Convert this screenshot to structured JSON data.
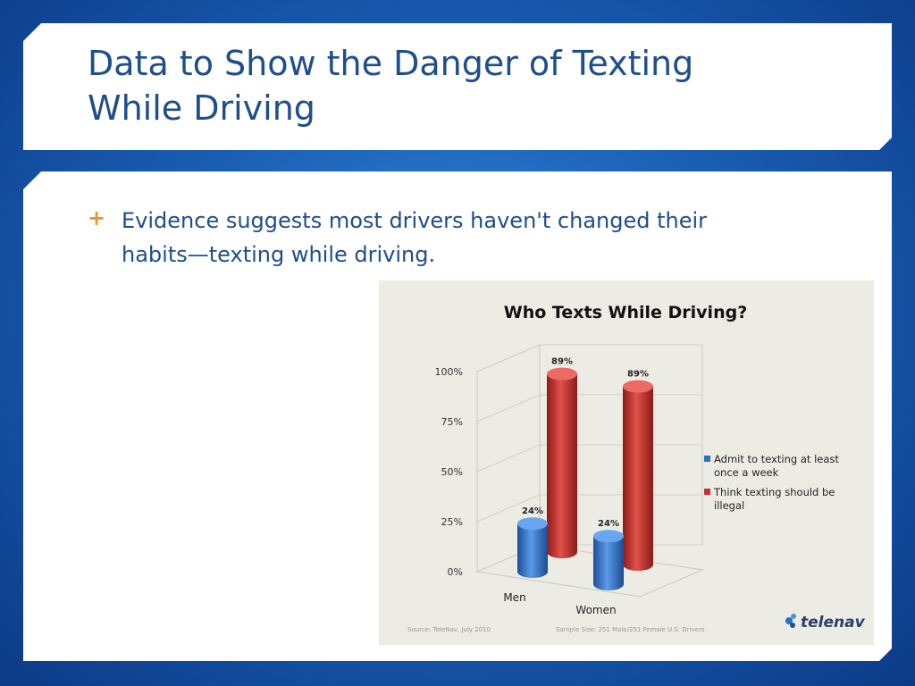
{
  "slide": {
    "title": "Data to Show the Danger of Texting While Driving",
    "bullet_marker": "+",
    "bullet_text": "Evidence suggests most drivers haven't changed their habits—texting while driving."
  },
  "colors": {
    "title": "#1e4e8c",
    "bullet_marker": "#f0932b",
    "series_admit": "#2a6fc9",
    "series_illegal": "#c8322c"
  },
  "chart_data": {
    "type": "bar",
    "style": "3d-cylinder",
    "title": "Who Texts While Driving?",
    "categories": [
      "Men",
      "Women"
    ],
    "series": [
      {
        "name": "Admit to texting at least once a week",
        "values": [
          24,
          24
        ],
        "labels": [
          "24%",
          "24%"
        ]
      },
      {
        "name": "Think texting should be illegal",
        "values": [
          89,
          89
        ],
        "labels": [
          "89%",
          "89%"
        ]
      }
    ],
    "yticks": [
      "0%",
      "25%",
      "50%",
      "75%",
      "100%"
    ],
    "ylim": [
      0,
      100
    ],
    "legend": "right",
    "source": "Source: TeleNav, July 2010",
    "sample_size": "Sample Size: 251 Male/251 Female U.S. Drivers",
    "logo_text": "telenav"
  }
}
